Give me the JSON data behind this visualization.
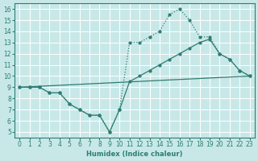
{
  "line_zigzag": {
    "x": [
      0,
      1,
      2,
      3,
      4,
      5,
      6,
      7,
      8,
      9,
      10,
      11,
      12,
      13,
      14,
      15,
      16,
      17,
      18,
      19,
      20,
      21,
      22,
      23
    ],
    "y": [
      9,
      9,
      9,
      8.5,
      8.5,
      7.5,
      7,
      6.5,
      6.5,
      5,
      7,
      13,
      13,
      13.5,
      14,
      15.5,
      16,
      15,
      13.5,
      13.5,
      12,
      11.5,
      10.5,
      10
    ],
    "linestyle": "solid"
  },
  "line_flat": {
    "x": [
      0,
      23
    ],
    "y": [
      9,
      10
    ],
    "linestyle": "solid"
  },
  "line_mid": {
    "x": [
      0,
      1,
      2,
      3,
      4,
      5,
      6,
      7,
      8,
      9,
      10,
      11,
      12,
      13,
      14,
      15,
      16,
      17,
      18,
      19,
      20,
      21,
      22,
      23
    ],
    "y": [
      9,
      9,
      9,
      8.5,
      8.5,
      7.5,
      7,
      6.5,
      6.5,
      5,
      7,
      9.5,
      10,
      10.5,
      11,
      11.5,
      12,
      12.5,
      13,
      13.3,
      12,
      11.5,
      10.5,
      10
    ],
    "linestyle": "solid"
  },
  "color": "#2e7d72",
  "bg_color": "#c8e8e8",
  "grid_color": "#ffffff",
  "xlabel": "Humidex (Indice chaleur)",
  "xlim": [
    -0.5,
    23.5
  ],
  "ylim": [
    4.5,
    16.5
  ],
  "yticks": [
    5,
    6,
    7,
    8,
    9,
    10,
    11,
    12,
    13,
    14,
    15,
    16
  ],
  "xticks": [
    0,
    1,
    2,
    3,
    4,
    5,
    6,
    7,
    8,
    9,
    10,
    11,
    12,
    13,
    14,
    15,
    16,
    17,
    18,
    19,
    20,
    21,
    22,
    23
  ]
}
